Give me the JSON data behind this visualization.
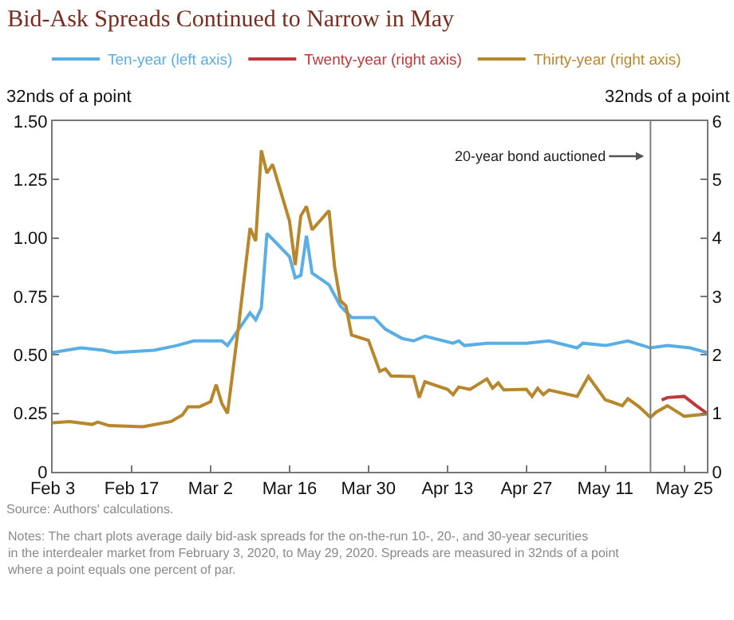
{
  "chart_data": {
    "type": "line",
    "title": "Bid-Ask Spreads Continued to Narrow in May",
    "ylabel": "32nds of a point",
    "y2label": "32nds of a point",
    "legend": "top",
    "xlim": [
      "2020-02-03",
      "2020-05-29"
    ],
    "xticks": [
      {
        "value": "2020-02-03",
        "label": "Feb 3"
      },
      {
        "value": "2020-02-17",
        "label": "Feb 17"
      },
      {
        "value": "2020-03-02",
        "label": "Mar 2"
      },
      {
        "value": "2020-03-16",
        "label": "Mar 16"
      },
      {
        "value": "2020-03-30",
        "label": "Mar 30"
      },
      {
        "value": "2020-04-13",
        "label": "Apr 13"
      },
      {
        "value": "2020-04-27",
        "label": "Apr 27"
      },
      {
        "value": "2020-05-11",
        "label": "May 11"
      },
      {
        "value": "2020-05-25",
        "label": "May 25"
      }
    ],
    "ylim": [
      0,
      1.5
    ],
    "yticks": [
      0,
      0.25,
      {
        "value": 0.5,
        "label": "0.50"
      },
      0.75,
      {
        "value": 1,
        "label": "1.00"
      },
      1.25,
      {
        "value": 1.5,
        "label": "1.50"
      }
    ],
    "y2lim": [
      0,
      6
    ],
    "y2ticks": [
      0,
      1,
      2,
      3,
      4,
      5,
      6
    ],
    "series": [
      {
        "name": "Ten-year (left axis)",
        "color": "#5aaee6",
        "x": [
          "2020-02-03",
          "2020-02-08",
          "2020-02-12",
          "2020-02-14",
          "2020-02-21",
          "2020-02-25",
          "2020-02-28",
          "2020-03-04",
          "2020-03-05",
          "2020-03-07",
          "2020-03-09",
          "2020-03-10",
          "2020-03-11",
          "2020-03-12",
          "2020-03-16",
          "2020-03-17",
          "2020-03-18",
          "2020-03-19",
          "2020-03-20",
          "2020-03-23",
          "2020-03-25",
          "2020-03-27",
          "2020-03-31",
          "2020-04-02",
          "2020-04-05",
          "2020-04-07",
          "2020-04-09",
          "2020-04-14",
          "2020-04-15",
          "2020-04-16",
          "2020-04-20",
          "2020-04-27",
          "2020-05-01",
          "2020-05-06",
          "2020-05-07",
          "2020-05-11",
          "2020-05-15",
          "2020-05-19",
          "2020-05-22",
          "2020-05-26",
          "2020-05-29"
        ],
        "values": [
          0.51,
          0.53,
          0.52,
          0.51,
          0.52,
          0.54,
          0.56,
          0.56,
          0.54,
          0.61,
          0.68,
          0.65,
          0.7,
          1.02,
          0.92,
          0.83,
          0.84,
          1.01,
          0.85,
          0.8,
          0.71,
          0.66,
          0.66,
          0.61,
          0.57,
          0.56,
          0.58,
          0.55,
          0.56,
          0.54,
          0.55,
          0.55,
          0.56,
          0.53,
          0.55,
          0.54,
          0.56,
          0.53,
          0.54,
          0.53,
          0.51
        ]
      },
      {
        "name": "Twenty-year (right axis)",
        "color": "#c0383a",
        "axis": "y2",
        "x": [
          "2020-05-21",
          "2020-05-22",
          "2020-05-25",
          "2020-05-27",
          "2020-05-29"
        ],
        "values": [
          1.23,
          1.27,
          1.29,
          1.14,
          1.0
        ]
      },
      {
        "name": "Thirty-year (right axis)",
        "color": "#b8862b",
        "axis": "y2",
        "x": [
          "2020-02-03",
          "2020-02-06",
          "2020-02-10",
          "2020-02-11",
          "2020-02-13",
          "2020-02-19",
          "2020-02-24",
          "2020-02-26",
          "2020-02-27",
          "2020-02-29",
          "2020-03-02",
          "2020-03-03",
          "2020-03-04",
          "2020-03-05",
          "2020-03-07",
          "2020-03-09",
          "2020-03-10",
          "2020-03-11",
          "2020-03-12",
          "2020-03-13",
          "2020-03-16",
          "2020-03-17",
          "2020-03-18",
          "2020-03-19",
          "2020-03-20",
          "2020-03-23",
          "2020-03-24",
          "2020-03-25",
          "2020-03-26",
          "2020-03-27",
          "2020-03-30",
          "2020-04-01",
          "2020-04-02",
          "2020-04-03",
          "2020-04-07",
          "2020-04-08",
          "2020-04-09",
          "2020-04-13",
          "2020-04-14",
          "2020-04-15",
          "2020-04-17",
          "2020-04-20",
          "2020-04-21",
          "2020-04-22",
          "2020-04-23",
          "2020-04-27",
          "2020-04-28",
          "2020-04-29",
          "2020-04-30",
          "2020-05-01",
          "2020-05-06",
          "2020-05-08",
          "2020-05-11",
          "2020-05-12",
          "2020-05-14",
          "2020-05-15",
          "2020-05-17",
          "2020-05-19",
          "2020-05-20",
          "2020-05-22",
          "2020-05-25",
          "2020-05-29"
        ],
        "values": [
          0.84,
          0.86,
          0.81,
          0.85,
          0.79,
          0.77,
          0.86,
          0.97,
          1.11,
          1.11,
          1.2,
          1.49,
          1.17,
          1.0,
          2.52,
          4.17,
          3.95,
          5.5,
          5.11,
          5.26,
          4.29,
          3.54,
          4.38,
          4.54,
          4.14,
          4.47,
          3.5,
          2.93,
          2.84,
          2.34,
          2.25,
          1.72,
          1.76,
          1.64,
          1.63,
          1.27,
          1.54,
          1.41,
          1.32,
          1.45,
          1.41,
          1.59,
          1.43,
          1.52,
          1.4,
          1.41,
          1.29,
          1.43,
          1.32,
          1.4,
          1.29,
          1.63,
          1.23,
          1.2,
          1.13,
          1.25,
          1.11,
          0.93,
          1.02,
          1.13,
          0.95,
          0.99
        ]
      }
    ],
    "ref_lines": [
      {
        "axis": "x",
        "value": "2020-05-19",
        "label": "20-year bond auctioned",
        "color": "#808080"
      }
    ],
    "annotations": [
      "Source: Authors' calculations.",
      "Notes: The chart plots average daily bid-ask spreads for the on-the-run 10-, 20-, and 30-year securities in the interdealer market from February 3, 2020, to May 29, 2020. Spreads are measured in 32nds of a point where a point equals one percent of par."
    ]
  }
}
